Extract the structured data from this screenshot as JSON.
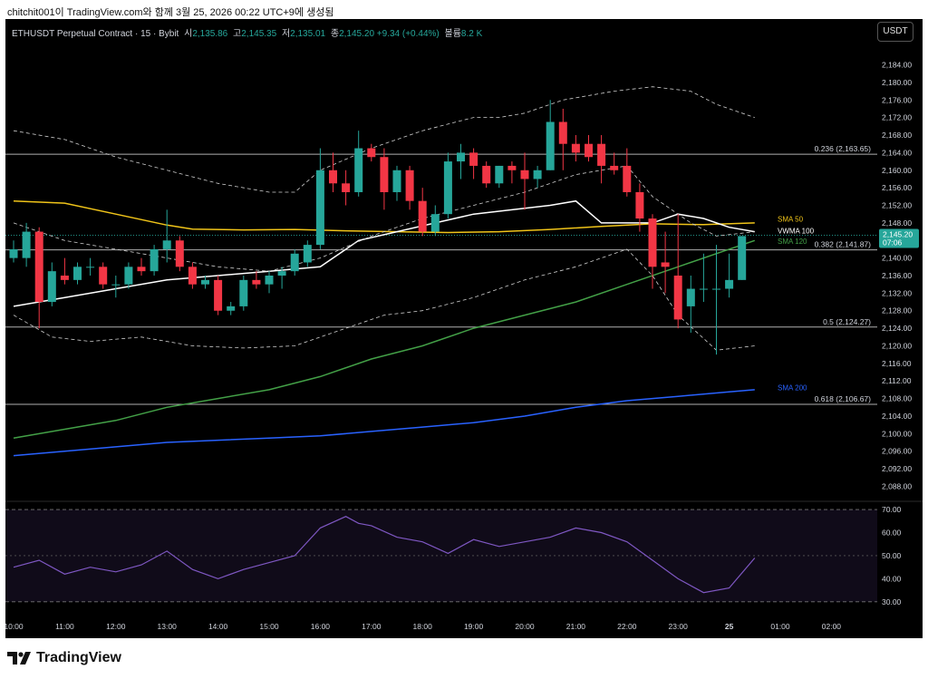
{
  "window": {
    "caption": "chitchit001이 TradingView.com와 함께 3월 25, 2026 00:22 UTC+9에 생성됨",
    "currency_button": "USDT",
    "logo_text": "TradingView"
  },
  "legend": {
    "symbol": "ETHUSDT Perpetual Contract · 15 · Bybit",
    "open_label": "시",
    "open": "2,135.86",
    "high_label": "고",
    "high": "2,145.35",
    "low_label": "저",
    "low": "2,135.01",
    "close_label": "종",
    "close": "2,145.20",
    "change": "+9.34 (+0.44%)",
    "volume_label": "볼륨",
    "volume": "8.2 K"
  },
  "colors": {
    "up": "#26a69a",
    "down": "#f23645",
    "sma50": "#f0c419",
    "sma120": "#43a047",
    "sma200": "#2962ff",
    "vwma": "#ffffff",
    "bands": "#d0d0d0",
    "rsi": "#7e57c2",
    "fib": "#b0b0b0"
  },
  "chart_data": [
    {
      "type": "candlestick",
      "title": "ETHUSDT Perpetual Contract · 15 · Bybit",
      "y_axis_side": "right",
      "ylim": [
        2085,
        2187
      ],
      "yticks": [
        "2,184.00",
        "2,180.00",
        "2,176.00",
        "2,172.00",
        "2,168.00",
        "2,164.00",
        "2,160.00",
        "2,156.00",
        "2,152.00",
        "2,148.00",
        "2,144.00",
        "2,140.00",
        "2,136.00",
        "2,132.00",
        "2,128.00",
        "2,124.00",
        "2,120.00",
        "2,116.00",
        "2,112.00",
        "2,108.00",
        "2,104.00",
        "2,100.00",
        "2,096.00",
        "2,092.00",
        "2,088.00"
      ],
      "xlabels": [
        {
          "x": 0,
          "label": "10:00"
        },
        {
          "x": 4,
          "label": "11:00"
        },
        {
          "x": 8,
          "label": "12:00"
        },
        {
          "x": 12,
          "label": "13:00"
        },
        {
          "x": 16,
          "label": "14:00"
        },
        {
          "x": 20,
          "label": "15:00"
        },
        {
          "x": 24,
          "label": "16:00"
        },
        {
          "x": 28,
          "label": "17:00"
        },
        {
          "x": 32,
          "label": "18:00"
        },
        {
          "x": 36,
          "label": "19:00"
        },
        {
          "x": 40,
          "label": "20:00"
        },
        {
          "x": 44,
          "label": "21:00"
        },
        {
          "x": 48,
          "label": "22:00"
        },
        {
          "x": 52,
          "label": "23:00"
        },
        {
          "x": 56,
          "label": "25"
        },
        {
          "x": 60,
          "label": "01:00"
        },
        {
          "x": 64,
          "label": "02:00"
        }
      ],
      "xlim": [
        0,
        67.5
      ],
      "candles": [
        {
          "o": 2140,
          "h": 2144,
          "l": 2139,
          "c": 2142
        },
        {
          "o": 2140,
          "h": 2148,
          "l": 2138,
          "c": 2146
        },
        {
          "o": 2146,
          "h": 2147,
          "l": 2124,
          "c": 2130
        },
        {
          "o": 2130,
          "h": 2139,
          "l": 2129,
          "c": 2137
        },
        {
          "o": 2136,
          "h": 2140,
          "l": 2134,
          "c": 2135
        },
        {
          "o": 2135,
          "h": 2139,
          "l": 2134,
          "c": 2138
        },
        {
          "o": 2138,
          "h": 2140,
          "l": 2136,
          "c": 2138
        },
        {
          "o": 2138,
          "h": 2139,
          "l": 2133,
          "c": 2134
        },
        {
          "o": 2134,
          "h": 2136,
          "l": 2131,
          "c": 2134
        },
        {
          "o": 2134,
          "h": 2139,
          "l": 2133,
          "c": 2138
        },
        {
          "o": 2138,
          "h": 2140,
          "l": 2136,
          "c": 2137
        },
        {
          "o": 2137,
          "h": 2143,
          "l": 2136,
          "c": 2142
        },
        {
          "o": 2142,
          "h": 2151,
          "l": 2139,
          "c": 2144
        },
        {
          "o": 2144,
          "h": 2145,
          "l": 2137,
          "c": 2138
        },
        {
          "o": 2138,
          "h": 2139,
          "l": 2133,
          "c": 2134
        },
        {
          "o": 2134,
          "h": 2136,
          "l": 2133,
          "c": 2135
        },
        {
          "o": 2135,
          "h": 2136,
          "l": 2127,
          "c": 2128
        },
        {
          "o": 2128,
          "h": 2130,
          "l": 2127,
          "c": 2129
        },
        {
          "o": 2129,
          "h": 2136,
          "l": 2128,
          "c": 2135
        },
        {
          "o": 2135,
          "h": 2137,
          "l": 2133,
          "c": 2134
        },
        {
          "o": 2134,
          "h": 2137,
          "l": 2132,
          "c": 2136
        },
        {
          "o": 2136,
          "h": 2138,
          "l": 2133,
          "c": 2137
        },
        {
          "o": 2137,
          "h": 2142,
          "l": 2136,
          "c": 2141
        },
        {
          "o": 2139,
          "h": 2144,
          "l": 2138,
          "c": 2143
        },
        {
          "o": 2143,
          "h": 2165,
          "l": 2142,
          "c": 2160
        },
        {
          "o": 2160,
          "h": 2164,
          "l": 2155,
          "c": 2157
        },
        {
          "o": 2157,
          "h": 2160,
          "l": 2152,
          "c": 2155
        },
        {
          "o": 2155,
          "h": 2169,
          "l": 2154,
          "c": 2165
        },
        {
          "o": 2165,
          "h": 2166,
          "l": 2162,
          "c": 2163
        },
        {
          "o": 2163,
          "h": 2165,
          "l": 2151,
          "c": 2155
        },
        {
          "o": 2155,
          "h": 2161,
          "l": 2153,
          "c": 2160
        },
        {
          "o": 2160,
          "h": 2161,
          "l": 2151,
          "c": 2153
        },
        {
          "o": 2153,
          "h": 2156,
          "l": 2145,
          "c": 2146
        },
        {
          "o": 2146,
          "h": 2152,
          "l": 2145,
          "c": 2150
        },
        {
          "o": 2150,
          "h": 2164,
          "l": 2149,
          "c": 2162
        },
        {
          "o": 2162,
          "h": 2166,
          "l": 2158,
          "c": 2164
        },
        {
          "o": 2164,
          "h": 2165,
          "l": 2158,
          "c": 2161
        },
        {
          "o": 2161,
          "h": 2162,
          "l": 2156,
          "c": 2157
        },
        {
          "o": 2157,
          "h": 2161,
          "l": 2156,
          "c": 2161
        },
        {
          "o": 2161,
          "h": 2162,
          "l": 2157,
          "c": 2160
        },
        {
          "o": 2160,
          "h": 2164,
          "l": 2151,
          "c": 2158
        },
        {
          "o": 2158,
          "h": 2161,
          "l": 2156,
          "c": 2160
        },
        {
          "o": 2160,
          "h": 2176,
          "l": 2160,
          "c": 2171
        },
        {
          "o": 2171,
          "h": 2174,
          "l": 2160,
          "c": 2166
        },
        {
          "o": 2166,
          "h": 2168,
          "l": 2162,
          "c": 2164
        },
        {
          "o": 2166,
          "h": 2168,
          "l": 2162,
          "c": 2163
        },
        {
          "o": 2166,
          "h": 2168,
          "l": 2157,
          "c": 2161
        },
        {
          "o": 2161,
          "h": 2164,
          "l": 2159,
          "c": 2160
        },
        {
          "o": 2161,
          "h": 2165,
          "l": 2154,
          "c": 2155
        },
        {
          "o": 2155,
          "h": 2157,
          "l": 2146,
          "c": 2149
        },
        {
          "o": 2149,
          "h": 2150,
          "l": 2133,
          "c": 2138
        },
        {
          "o": 2139,
          "h": 2146,
          "l": 2132,
          "c": 2138
        },
        {
          "o": 2136,
          "h": 2150,
          "l": 2124,
          "c": 2126
        },
        {
          "o": 2129,
          "h": 2136,
          "l": 2123,
          "c": 2133
        },
        {
          "o": 2133,
          "h": 2141,
          "l": 2130,
          "c": 2133
        },
        {
          "o": 2133,
          "h": 2143,
          "l": 2118,
          "c": 2133
        },
        {
          "o": 2133,
          "h": 2141,
          "l": 2131,
          "c": 2135
        },
        {
          "o": 2135,
          "h": 2145,
          "l": 2135,
          "c": 2145
        }
      ],
      "series": [
        {
          "name": "SMA 50",
          "color_key": "sma50",
          "x": [
            0,
            4,
            8,
            12,
            14,
            18,
            22,
            26,
            30,
            34,
            38,
            42,
            46,
            50,
            54,
            58
          ],
          "values": [
            2153,
            2152.5,
            2150,
            2147.5,
            2146.6,
            2146.4,
            2146.5,
            2146.2,
            2146,
            2145.8,
            2146,
            2146.5,
            2147.2,
            2147.8,
            2147.6,
            2148
          ]
        },
        {
          "name": "VWMA 100",
          "color_key": "vwma",
          "x": [
            0,
            4,
            8,
            12,
            16,
            20,
            24,
            27,
            30,
            33,
            36,
            39,
            42,
            44,
            46,
            48,
            50,
            52,
            54,
            56,
            58
          ],
          "values": [
            2129,
            2131,
            2133,
            2135,
            2136,
            2137,
            2138,
            2144,
            2146,
            2148,
            2150,
            2151,
            2152,
            2153,
            2148,
            2148,
            2148,
            2150,
            2149,
            2147,
            2146
          ]
        },
        {
          "name": "SMA 120",
          "color_key": "sma120",
          "x": [
            0,
            4,
            8,
            12,
            16,
            20,
            24,
            28,
            32,
            36,
            40,
            44,
            48,
            52,
            56,
            58
          ],
          "values": [
            2099,
            2101,
            2103,
            2106,
            2108,
            2110,
            2113,
            2117,
            2120,
            2124,
            2127,
            2130,
            2134,
            2138,
            2142,
            2144
          ]
        },
        {
          "name": "SMA 200",
          "color_key": "sma200",
          "x": [
            0,
            4,
            8,
            12,
            16,
            20,
            24,
            28,
            32,
            36,
            40,
            44,
            48,
            52,
            56,
            58
          ],
          "values": [
            2095,
            2096,
            2097,
            2098,
            2098.5,
            2099,
            2099.5,
            2100.5,
            2101.5,
            2102.5,
            2104,
            2106,
            2107.5,
            2108.5,
            2109.5,
            2110
          ]
        },
        {
          "name": "upper band",
          "color_key": "bands",
          "x": [
            0,
            4,
            8,
            12,
            16,
            20,
            22,
            24,
            28,
            32,
            36,
            38,
            40,
            43,
            47,
            50,
            53,
            55,
            58
          ],
          "values": [
            2169,
            2167,
            2163,
            2160,
            2157,
            2155,
            2155,
            2160,
            2165,
            2169,
            2172,
            2172,
            2173,
            2176,
            2178,
            2179,
            2178,
            2175,
            2172
          ]
        },
        {
          "name": "lower band",
          "color_key": "bands",
          "x": [
            0,
            3,
            6,
            10,
            14,
            18,
            22,
            26,
            29,
            32,
            36,
            40,
            44,
            48,
            50,
            52,
            55,
            58
          ],
          "values": [
            2127,
            2122,
            2121,
            2122,
            2120,
            2119.5,
            2120,
            2124,
            2127,
            2128,
            2131,
            2135,
            2138,
            2142,
            2136,
            2127,
            2119,
            2120
          ]
        },
        {
          "name": "middle band",
          "color_key": "bands",
          "x": [
            0,
            4,
            8,
            12,
            16,
            20,
            24,
            28,
            32,
            36,
            40,
            44,
            48,
            50,
            53,
            55,
            58
          ],
          "values": [
            2148,
            2144,
            2142,
            2140,
            2138,
            2137,
            2140,
            2145,
            2149,
            2152,
            2155,
            2159,
            2161,
            2154,
            2148,
            2145,
            2146
          ]
        }
      ],
      "fib_levels": [
        {
          "value": 2163.65,
          "label": "0.236 (2,163.65)"
        },
        {
          "value": 2141.87,
          "label": "0.382 (2,141.87)"
        },
        {
          "value": 2124.27,
          "label": "0.5 (2,124.27)"
        },
        {
          "value": 2106.67,
          "label": "0.618 (2,106.67)"
        }
      ],
      "line_labels": [
        {
          "text": "SMA 50",
          "value": 2148.9,
          "color_key": "sma50"
        },
        {
          "text": "VWMA 100",
          "value": 2146.2,
          "color_key": "vwma"
        },
        {
          "text": "SMA 120",
          "value": 2143.8,
          "color_key": "sma120"
        },
        {
          "text": "SMA 200",
          "value": 2110.5,
          "color_key": "sma200"
        }
      ],
      "price_tag": {
        "value": 2145.2,
        "price": "2,145.20",
        "countdown": "07:06"
      }
    },
    {
      "type": "line",
      "title": "",
      "ylim": [
        26,
        72
      ],
      "yticks": [
        "70.00",
        "60.00",
        "50.00",
        "40.00",
        "30.00"
      ],
      "band": [
        30,
        70
      ],
      "midline": 50,
      "series": [
        {
          "name": "",
          "color_key": "rsi",
          "x": [
            0,
            2,
            4,
            6,
            8,
            10,
            12,
            14,
            16,
            18,
            20,
            22,
            24,
            26,
            27,
            28,
            30,
            32,
            34,
            36,
            38,
            40,
            42,
            44,
            46,
            48,
            50,
            52,
            54,
            56,
            58
          ],
          "values": [
            45,
            48,
            42,
            45,
            43,
            46,
            52,
            44,
            40,
            44,
            47,
            50,
            62,
            67,
            64,
            63,
            58,
            56,
            51,
            57,
            54,
            56,
            58,
            62,
            60,
            56,
            48,
            40,
            34,
            36,
            49
          ]
        }
      ]
    }
  ]
}
